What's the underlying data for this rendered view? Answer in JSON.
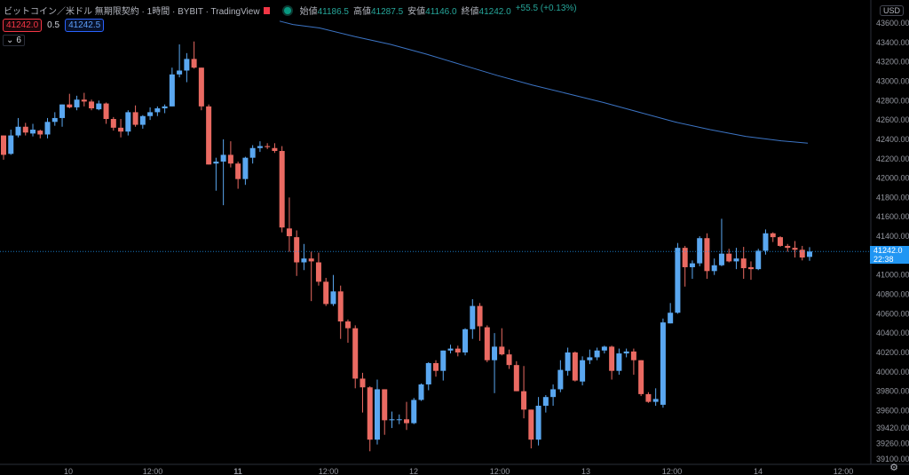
{
  "header": {
    "symbol": "ビットコイン／米ドル 無期限契約 · 1時間 · BYBIT · TradingView",
    "ohlc": [
      {
        "k": "始値",
        "v": "41186.5"
      },
      {
        "k": "高値",
        "v": "41287.5"
      },
      {
        "k": "安値",
        "v": "41146.0"
      },
      {
        "k": "終値",
        "v": "41242.0"
      },
      {
        "k": "",
        "v": "+55.5 (+0.13%)"
      }
    ]
  },
  "order": {
    "bid": "41242.0",
    "spread": "0.5",
    "ask": "41242.5"
  },
  "indicator_badge": {
    "chevron": "⌄",
    "count": "6"
  },
  "currency_button": "USD",
  "last_price": {
    "value": "41242.0",
    "countdown": "22:38"
  },
  "colors": {
    "up": "#5aa7f0",
    "down": "#ea6a62",
    "ma": "#3c74c4",
    "axis_text": "#9598a1",
    "last": "#2196f3"
  },
  "icons": {
    "settings": "gear-icon"
  },
  "chart_data": {
    "type": "candlestick",
    "title": "",
    "y_axis": {
      "min": 39100,
      "max": 43600,
      "ticks": [
        43600,
        43400,
        43200,
        43000,
        42800,
        42600,
        42400,
        42200,
        42000,
        41800,
        41600,
        41400,
        41200,
        41000,
        40800,
        40600,
        40400,
        40200,
        40000,
        39800,
        39600,
        39420,
        39260,
        39100
      ]
    },
    "x_axis": {
      "labels": [
        "10",
        "12:00",
        "11",
        "12:00",
        "12",
        "12:00",
        "13",
        "12:00",
        "14",
        "12:00"
      ],
      "bold": [
        "11"
      ]
    },
    "candles": [
      [
        42440,
        42440,
        42190,
        42240
      ],
      [
        42250,
        42500,
        42240,
        42440
      ],
      [
        42440,
        42620,
        42420,
        42530
      ],
      [
        42530,
        42570,
        42440,
        42470
      ],
      [
        42460,
        42560,
        42430,
        42500
      ],
      [
        42490,
        42500,
        42410,
        42450
      ],
      [
        42450,
        42620,
        42410,
        42580
      ],
      [
        42580,
        42680,
        42540,
        42620
      ],
      [
        42620,
        42760,
        42530,
        42760
      ],
      [
        42760,
        42870,
        42720,
        42730
      ],
      [
        42730,
        42850,
        42700,
        42810
      ],
      [
        42810,
        42880,
        42740,
        42790
      ],
      [
        42790,
        42810,
        42700,
        42720
      ],
      [
        42710,
        42800,
        42700,
        42770
      ],
      [
        42770,
        42780,
        42560,
        42610
      ],
      [
        42610,
        42630,
        42490,
        42520
      ],
      [
        42520,
        42610,
        42420,
        42480
      ],
      [
        42480,
        42700,
        42440,
        42680
      ],
      [
        42680,
        42750,
        42530,
        42550
      ],
      [
        42550,
        42650,
        42510,
        42640
      ],
      [
        42640,
        42730,
        42600,
        42680
      ],
      [
        42680,
        42740,
        42640,
        42720
      ],
      [
        42720,
        42760,
        42670,
        42740
      ],
      [
        42740,
        43140,
        42740,
        43070
      ],
      [
        43070,
        43380,
        43040,
        43110
      ],
      [
        43110,
        43290,
        42990,
        43230
      ],
      [
        43230,
        43410,
        43130,
        43140
      ],
      [
        43140,
        43140,
        42700,
        42740
      ],
      [
        42740,
        42760,
        42140,
        42140
      ],
      [
        42150,
        42210,
        41870,
        42170
      ],
      [
        42170,
        42400,
        41720,
        42240
      ],
      [
        42240,
        42380,
        42110,
        42150
      ],
      [
        42150,
        42170,
        41890,
        41990
      ],
      [
        41990,
        42220,
        41930,
        42210
      ],
      [
        42210,
        42340,
        42150,
        42310
      ],
      [
        42310,
        42380,
        42270,
        42330
      ],
      [
        42330,
        42360,
        42300,
        42320
      ],
      [
        42310,
        42360,
        42260,
        42280
      ],
      [
        42280,
        42330,
        41440,
        41490
      ],
      [
        41480,
        41800,
        41240,
        41400
      ],
      [
        41390,
        41460,
        40990,
        41130
      ],
      [
        41130,
        41320,
        41050,
        41170
      ],
      [
        41170,
        41240,
        40730,
        41140
      ],
      [
        41130,
        41230,
        40890,
        40930
      ],
      [
        40930,
        40970,
        40680,
        40700
      ],
      [
        40700,
        41000,
        40680,
        40830
      ],
      [
        40830,
        40890,
        40340,
        40520
      ],
      [
        40520,
        40540,
        40300,
        40450
      ],
      [
        40450,
        40480,
        39830,
        39930
      ],
      [
        39930,
        39990,
        39580,
        39840
      ],
      [
        39840,
        39850,
        39180,
        39300
      ],
      [
        39300,
        39920,
        39250,
        39820
      ],
      [
        39820,
        39820,
        39350,
        39500
      ],
      [
        39500,
        39590,
        39420,
        39510
      ],
      [
        39510,
        39560,
        39460,
        39510
      ],
      [
        39510,
        39690,
        39400,
        39470
      ],
      [
        39470,
        39730,
        39460,
        39710
      ],
      [
        39710,
        39880,
        39700,
        39870
      ],
      [
        39870,
        40100,
        39810,
        40090
      ],
      [
        40090,
        40120,
        39950,
        40010
      ],
      [
        40010,
        40220,
        39910,
        40220
      ],
      [
        40220,
        40280,
        40190,
        40240
      ],
      [
        40240,
        40270,
        40160,
        40200
      ],
      [
        40200,
        40450,
        40170,
        40440
      ],
      [
        40440,
        40750,
        40340,
        40680
      ],
      [
        40680,
        40710,
        40320,
        40470
      ],
      [
        40460,
        40480,
        40100,
        40120
      ],
      [
        40120,
        40400,
        39780,
        40260
      ],
      [
        40260,
        40450,
        40170,
        40180
      ],
      [
        40180,
        40230,
        40030,
        40070
      ],
      [
        40070,
        40110,
        39800,
        39800
      ],
      [
        39800,
        40060,
        39520,
        39610
      ],
      [
        39610,
        39610,
        39210,
        39300
      ],
      [
        39300,
        39740,
        39240,
        39650
      ],
      [
        39650,
        39760,
        39580,
        39740
      ],
      [
        39740,
        39870,
        39650,
        39820
      ],
      [
        39820,
        40120,
        39790,
        40020
      ],
      [
        40010,
        40250,
        39960,
        40200
      ],
      [
        40200,
        40210,
        39900,
        39910
      ],
      [
        39900,
        40160,
        39860,
        40120
      ],
      [
        40120,
        40230,
        40080,
        40150
      ],
      [
        40150,
        40250,
        40120,
        40220
      ],
      [
        40220,
        40270,
        40190,
        40260
      ],
      [
        40260,
        40270,
        39920,
        40010
      ],
      [
        40010,
        40240,
        39970,
        40190
      ],
      [
        40190,
        40240,
        40150,
        40210
      ],
      [
        40210,
        40240,
        39970,
        40120
      ],
      [
        40120,
        40120,
        39750,
        39770
      ],
      [
        39770,
        39790,
        39680,
        39690
      ],
      [
        39690,
        39830,
        39650,
        39720
      ],
      [
        39660,
        40550,
        39630,
        40510
      ],
      [
        40500,
        40710,
        40500,
        40610
      ],
      [
        40610,
        41330,
        40600,
        41280
      ],
      [
        41280,
        41300,
        40880,
        41080
      ],
      [
        41080,
        41150,
        40960,
        41120
      ],
      [
        41120,
        41400,
        41090,
        41380
      ],
      [
        41380,
        41430,
        40960,
        41040
      ],
      [
        41040,
        41170,
        41000,
        41100
      ],
      [
        41100,
        41580,
        41090,
        41220
      ],
      [
        41220,
        41270,
        41130,
        41140
      ],
      [
        41140,
        41280,
        41060,
        41170
      ],
      [
        41170,
        41290,
        40960,
        41070
      ],
      [
        41080,
        41140,
        40950,
        41060
      ],
      [
        41060,
        41270,
        41050,
        41250
      ],
      [
        41250,
        41470,
        41210,
        41430
      ],
      [
        41430,
        41440,
        41340,
        41390
      ],
      [
        41390,
        41400,
        41290,
        41300
      ],
      [
        41300,
        41320,
        41240,
        41280
      ],
      [
        41280,
        41350,
        41180,
        41260
      ],
      [
        41260,
        41300,
        41150,
        41180
      ],
      [
        41186.5,
        41287.5,
        41146,
        41242
      ]
    ],
    "ma": [
      [
        315,
        43620
      ],
      [
        330,
        43585
      ],
      [
        360,
        43550
      ],
      [
        400,
        43460
      ],
      [
        440,
        43380
      ],
      [
        480,
        43280
      ],
      [
        520,
        43170
      ],
      [
        560,
        43060
      ],
      [
        600,
        42960
      ],
      [
        640,
        42870
      ],
      [
        680,
        42780
      ],
      [
        720,
        42680
      ],
      [
        760,
        42580
      ],
      [
        800,
        42500
      ],
      [
        840,
        42430
      ],
      [
        880,
        42385
      ],
      [
        910,
        42360
      ]
    ]
  }
}
